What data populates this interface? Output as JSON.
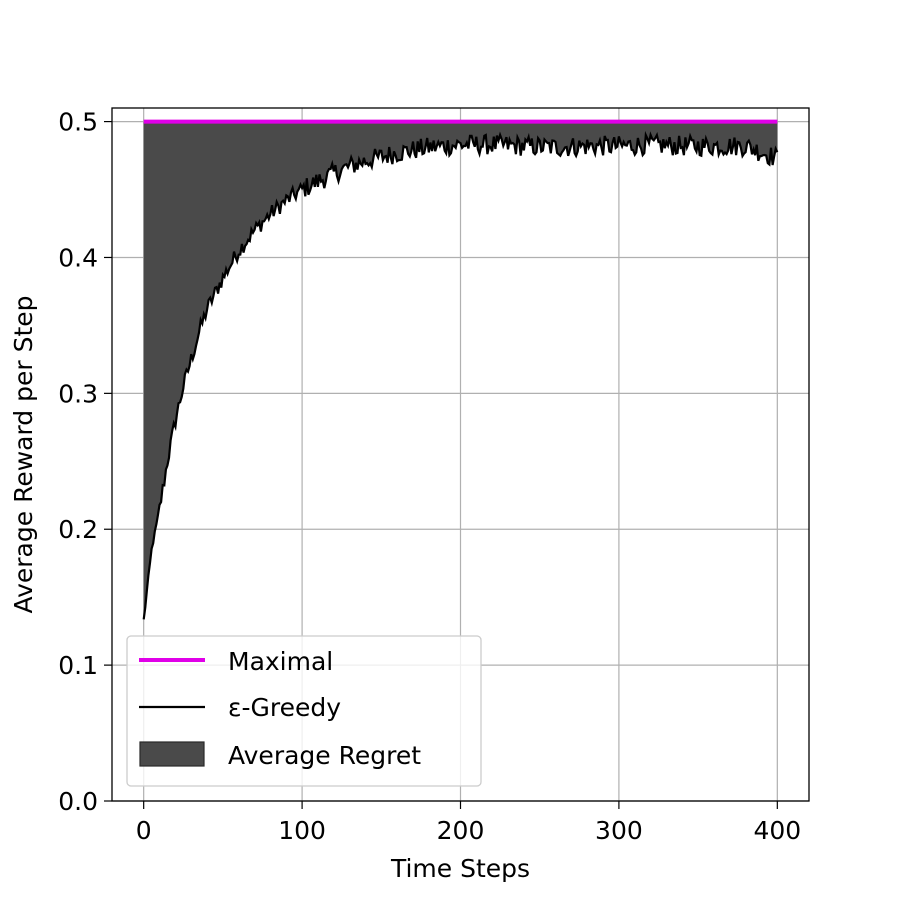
{
  "chart_data": {
    "type": "line",
    "xlabel": "Time Steps",
    "ylabel": "Average Reward per Step",
    "xlim": [
      -20,
      420
    ],
    "ylim": [
      0.0,
      0.51
    ],
    "x_ticks": [
      0,
      100,
      200,
      300,
      400
    ],
    "x_tick_labels": [
      "0",
      "100",
      "200",
      "300",
      "400"
    ],
    "y_ticks": [
      0.0,
      0.1,
      0.2,
      0.3,
      0.4,
      0.5
    ],
    "y_tick_labels": [
      "0.0",
      "0.1",
      "0.2",
      "0.3",
      "0.4",
      "0.5"
    ],
    "grid": true,
    "legend_placement": "lower-left",
    "series": [
      {
        "name": "Maximal",
        "color": "#e000e8",
        "x": [
          0,
          400
        ],
        "values": [
          0.5,
          0.5
        ]
      },
      {
        "name": "ε-Greedy",
        "color": "#000000",
        "x": [
          0,
          5,
          10,
          15,
          20,
          25,
          30,
          35,
          40,
          50,
          60,
          70,
          80,
          90,
          100,
          110,
          120,
          130,
          140,
          150,
          160,
          170,
          180,
          190,
          200,
          220,
          240,
          260,
          280,
          300,
          320,
          340,
          360,
          380,
          400
        ],
        "values": [
          0.133,
          0.185,
          0.215,
          0.25,
          0.28,
          0.305,
          0.325,
          0.345,
          0.362,
          0.385,
          0.405,
          0.42,
          0.432,
          0.442,
          0.45,
          0.456,
          0.462,
          0.467,
          0.471,
          0.474,
          0.477,
          0.479,
          0.481,
          0.482,
          0.483,
          0.483,
          0.482,
          0.481,
          0.482,
          0.482,
          0.483,
          0.482,
          0.482,
          0.482,
          0.473
        ]
      }
    ],
    "fill": {
      "name": "Average Regret",
      "color": "#4a4a4a",
      "between": [
        "Maximal",
        "ε-Greedy"
      ]
    }
  }
}
